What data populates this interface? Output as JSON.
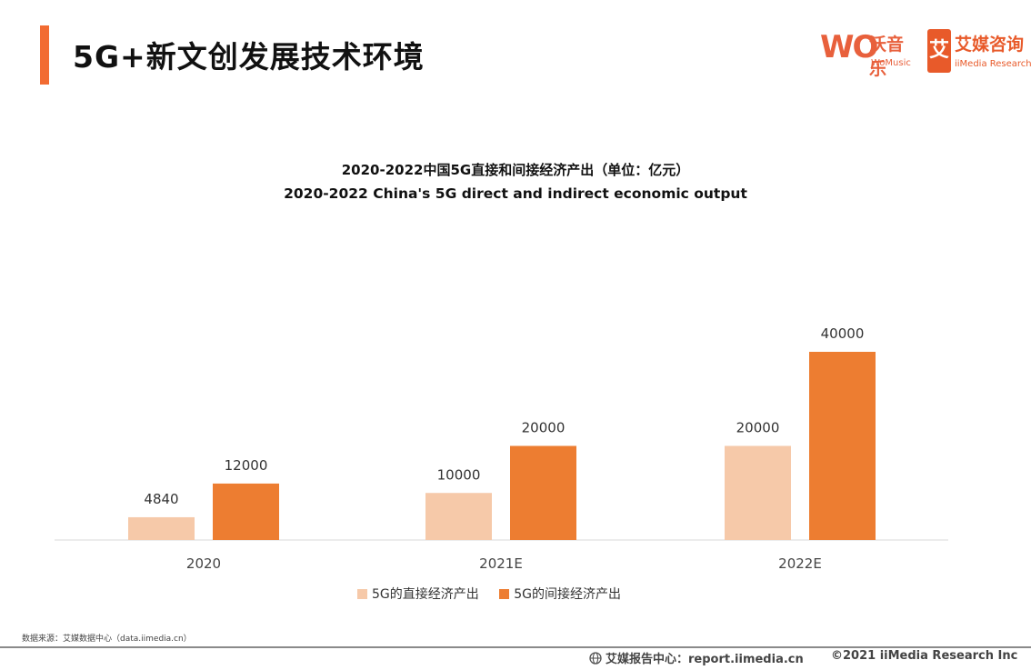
{
  "page": {
    "title": "5G+新文创发展技术环境",
    "accent_color": "#f26b32"
  },
  "logos": {
    "womusic": {
      "mark": "WO",
      "name": "沃音乐",
      "en": "WoMusic",
      "color": "#e8603c"
    },
    "iimedia": {
      "mark": "艾",
      "name": "艾媒咨询",
      "en": "iiMedia Research",
      "color": "#e85a2a"
    }
  },
  "chart_data": {
    "type": "bar",
    "title": "2020-2022中国5G直接和间接经济产出（单位：亿元）",
    "subtitle": "2020-2022 China's 5G direct and indirect economic output",
    "categories": [
      "2020",
      "2021E",
      "2022E"
    ],
    "series": [
      {
        "name": "5G的直接经济产出",
        "values": [
          4840,
          10000,
          20000
        ],
        "color": "#f6c9a9"
      },
      {
        "name": "5G的间接经济产出",
        "values": [
          12000,
          20000,
          40000
        ],
        "color": "#ed7d31"
      }
    ],
    "ylim": [
      0,
      40000
    ],
    "grid": false,
    "legend_position": "bottom",
    "xlabel": "",
    "ylabel": ""
  },
  "footer": {
    "source": "数据来源：艾媒数据中心（data.iimedia.cn）",
    "site": "艾媒报告中心：report.iimedia.cn",
    "copyright": "©2021  iiMedia Research  Inc"
  }
}
